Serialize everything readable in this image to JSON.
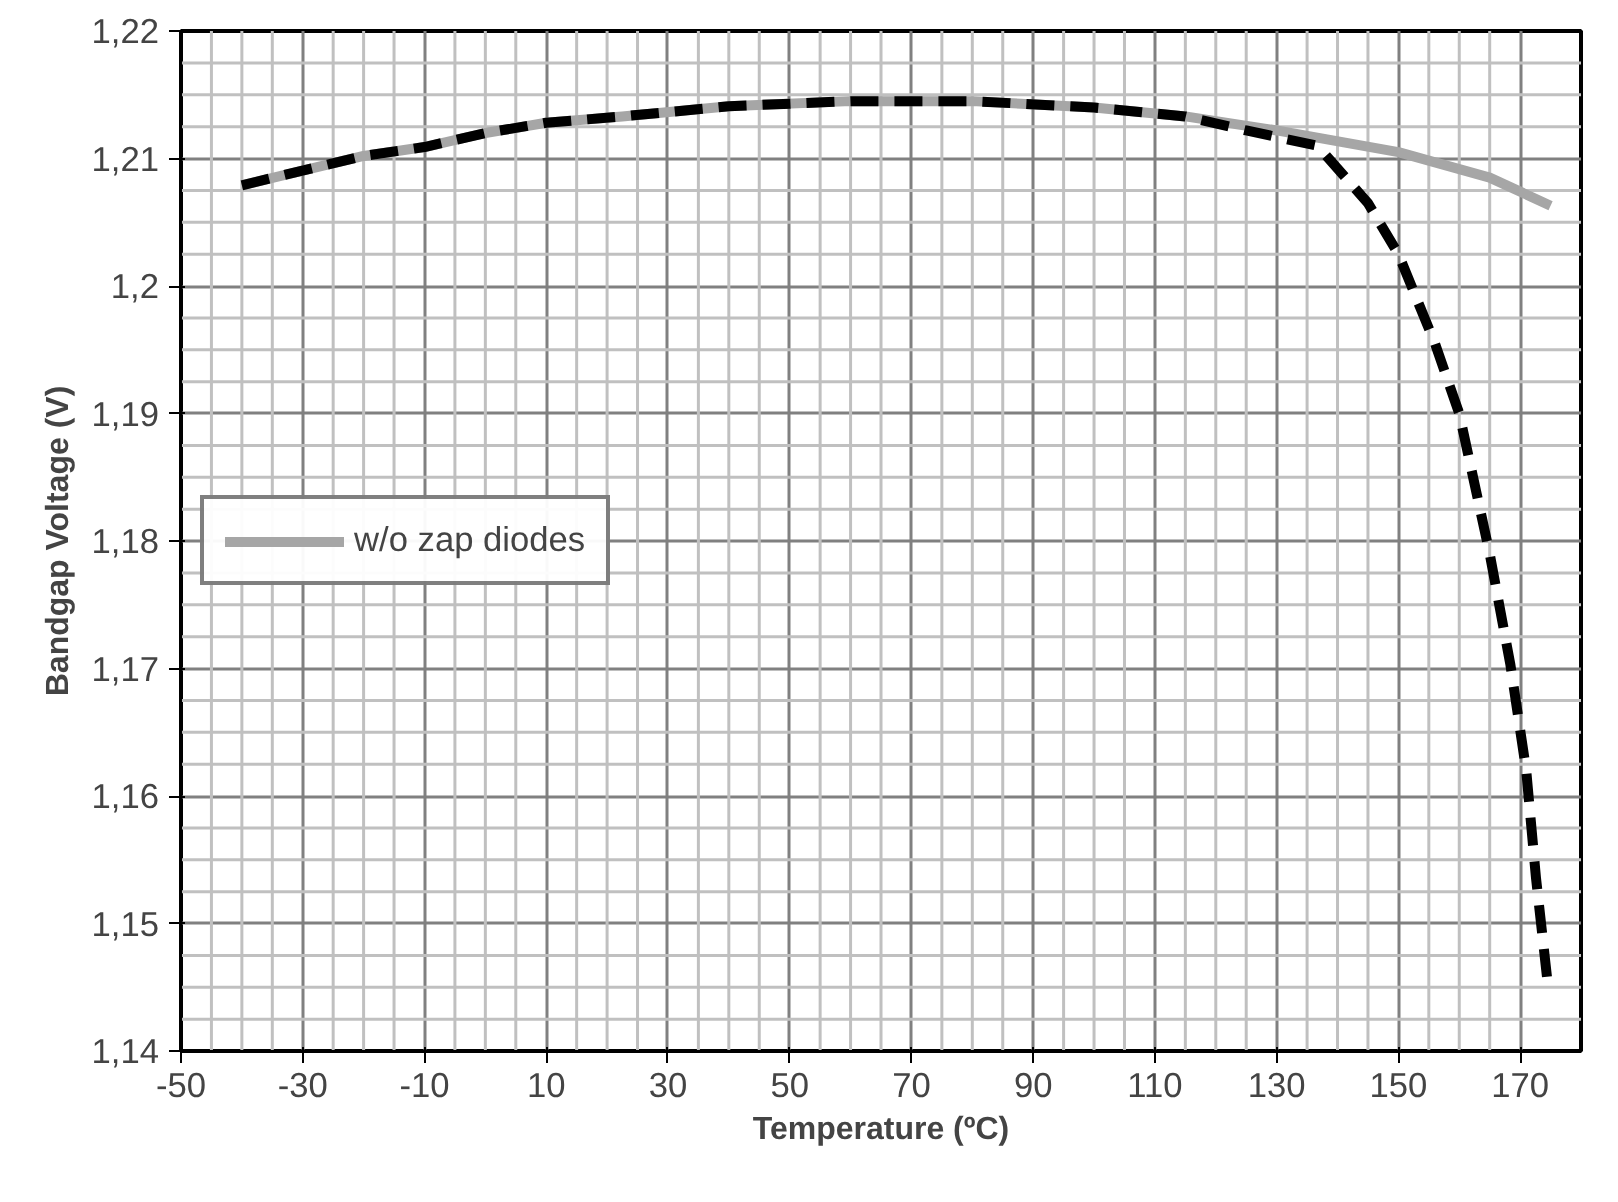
{
  "chart_data": {
    "type": "line",
    "xlabel": "Temperature (ºC)",
    "ylabel": "Bandgap Voltage (V)",
    "xlim": [
      -50,
      180
    ],
    "xticks": [
      -50,
      -30,
      -10,
      10,
      30,
      50,
      70,
      90,
      110,
      130,
      150,
      170
    ],
    "ylim": [
      1.14,
      1.22
    ],
    "yticks": [
      {
        "value": 1.14,
        "label": "1,14"
      },
      {
        "value": 1.15,
        "label": "1,15"
      },
      {
        "value": 1.16,
        "label": "1,16"
      },
      {
        "value": 1.17,
        "label": "1,17"
      },
      {
        "value": 1.18,
        "label": "1,18"
      },
      {
        "value": 1.19,
        "label": "1,19"
      },
      {
        "value": 1.2,
        "label": "1,2"
      },
      {
        "value": 1.21,
        "label": "1,21"
      },
      {
        "value": 1.22,
        "label": "1,22"
      }
    ],
    "grid": true,
    "legend": "left",
    "series": [
      {
        "name": "w/o zap diodes",
        "color": "#a6a6a6",
        "line_style": "solid",
        "x": [
          -40,
          -20,
          -10,
          0,
          10,
          22.5,
          40,
          60,
          80,
          100,
          115,
          130,
          150,
          165,
          175
        ],
        "values": [
          1.2079,
          1.2102,
          1.2109,
          1.212,
          1.2128,
          1.2133,
          1.2141,
          1.2145,
          1.2145,
          1.214,
          1.2133,
          1.2122,
          1.2105,
          1.2085,
          1.2063
        ]
      },
      {
        "color": "#000000",
        "line_style": "dashed",
        "x": [
          -40,
          -20,
          -10,
          0,
          10,
          22.5,
          40,
          60,
          80,
          100,
          115,
          125,
          136.7,
          145,
          150,
          156,
          160,
          165,
          168.4,
          171,
          172.6,
          174.6
        ],
        "values": [
          1.2079,
          1.2102,
          1.2109,
          1.212,
          1.2128,
          1.2133,
          1.2141,
          1.2145,
          1.2145,
          1.214,
          1.2133,
          1.2122,
          1.211,
          1.2065,
          1.2025,
          1.1955,
          1.19,
          1.179,
          1.1703,
          1.162,
          1.1536,
          1.145
        ]
      }
    ]
  }
}
